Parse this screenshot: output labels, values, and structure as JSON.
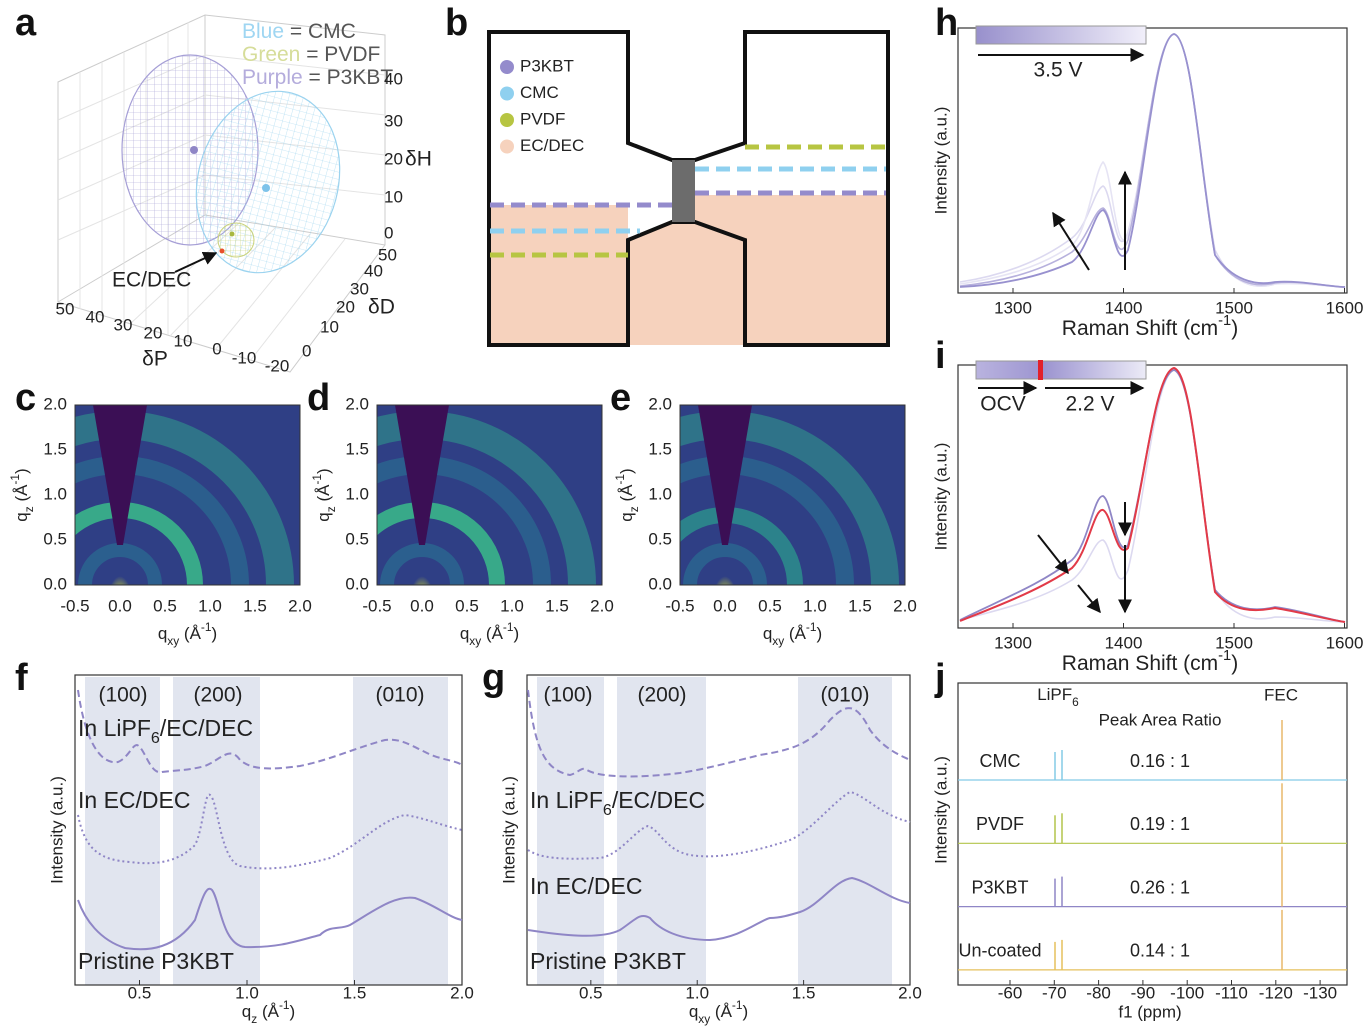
{
  "a": {
    "label": "a",
    "legend": [
      {
        "key": "Blue",
        "text": " = CMC",
        "color": "#9fd6f2"
      },
      {
        "key": "Green",
        "text": " = PVDF",
        "color": "#d6dd9a"
      },
      {
        "key": "Purple",
        "text": " = P3KBT",
        "color": "#b4acdc"
      }
    ],
    "arrow_label": "EC/DEC",
    "dH": {
      "label": "δH",
      "ticks": [
        "40",
        "30",
        "20",
        "10",
        "0"
      ]
    },
    "dD": {
      "label": "δD",
      "ticks": [
        "50",
        "40",
        "30",
        "20",
        "10",
        "0"
      ]
    },
    "dP": {
      "label": "δP",
      "ticks": [
        "50",
        "40",
        "30",
        "20",
        "10",
        "0",
        "-10",
        "-20"
      ]
    }
  },
  "b": {
    "label": "b",
    "legend": [
      {
        "name": "P3KBT",
        "color": "#948bcc"
      },
      {
        "name": "CMC",
        "color": "#8fd0ef"
      },
      {
        "name": "PVDF",
        "color": "#b7c542"
      },
      {
        "name": "EC/DEC",
        "color": "#f6d2bd"
      }
    ]
  },
  "giwaxs": {
    "panels": [
      "c",
      "d",
      "e"
    ],
    "xticks": [
      "-0.5",
      "0.0",
      "0.5",
      "1.0",
      "1.5",
      "2.0"
    ],
    "yticks": [
      "0.0",
      "0.5",
      "1.0",
      "1.5",
      "2.0"
    ],
    "xlabel": {
      "symbol": "q",
      "sub": "xy",
      "unit": " (Å",
      "exp": "-1",
      "end": ")"
    },
    "ylabel": {
      "symbol": "q",
      "sub": "z",
      "unit": " (Å",
      "exp": "-1",
      "end": ")"
    }
  },
  "f": {
    "label": "f",
    "peaks": [
      "(100)",
      "(200)",
      "(010)"
    ],
    "curves": [
      [
        "In LiPF",
        "6",
        "/EC/DEC"
      ],
      [
        "In EC/DEC"
      ],
      [
        "Pristine P3KBT"
      ]
    ],
    "ylabel": "Intensity (a.u.)",
    "xticks": [
      "0.5",
      "1.0",
      "1.5",
      "2.0"
    ],
    "xlabel": {
      "symbol": "q",
      "sub": "z",
      "unit": " (Å",
      "exp": "-1",
      "end": ")"
    }
  },
  "g": {
    "label": "g",
    "peaks": [
      "(100)",
      "(200)",
      "(010)"
    ],
    "curves": [
      [
        "In LiPF",
        "6",
        "/EC/DEC"
      ],
      [
        "In EC/DEC"
      ],
      [
        "Pristine P3KBT"
      ]
    ],
    "ylabel": "Intensity (a.u.)",
    "xticks": [
      "0.5",
      "1.0",
      "1.5",
      "2.0"
    ],
    "xlabel": {
      "symbol": "q",
      "sub": "xy",
      "unit": " (Å",
      "exp": "-1",
      "end": ")"
    }
  },
  "h": {
    "label": "h",
    "ylabel": "Intensity (a.u.)",
    "xlabel": {
      "text": "Raman Shift (cm",
      "exp": "-1",
      "end": ")"
    },
    "xticks": [
      "1300",
      "1400",
      "1500",
      "1600"
    ],
    "voltage": "3.5 V"
  },
  "i": {
    "label": "i",
    "ylabel": "Intensity (a.u.)",
    "xlabel": {
      "text": "Raman Shift (cm",
      "exp": "-1",
      "end": ")"
    },
    "xticks": [
      "1300",
      "1400",
      "1500",
      "1600"
    ],
    "ocv": "OCV",
    "voltage": "2.2 V"
  },
  "j": {
    "label": "j",
    "ylabel": "Intensity (a.u.)",
    "xlabel": "f1 (ppm)",
    "xticks": [
      "-60",
      "-70",
      "-80",
      "-90",
      "-100",
      "-110",
      "-120",
      "-130"
    ],
    "lipf6": [
      "LiPF",
      "6"
    ],
    "fec": "FEC",
    "ratio_title": "Peak Area Ratio",
    "fec_color": "#e9b86b",
    "rows": [
      {
        "name": "CMC",
        "ratio": "0.16 : 1",
        "color": "#84cbe6"
      },
      {
        "name": "PVDF",
        "ratio": "0.19 : 1",
        "color": "#b3c44a"
      },
      {
        "name": "P3KBT",
        "ratio": "0.26 : 1",
        "color": "#8f86c6"
      },
      {
        "name": "Un-coated",
        "ratio": "0.14 : 1",
        "color": "#e6c15c"
      }
    ]
  }
}
